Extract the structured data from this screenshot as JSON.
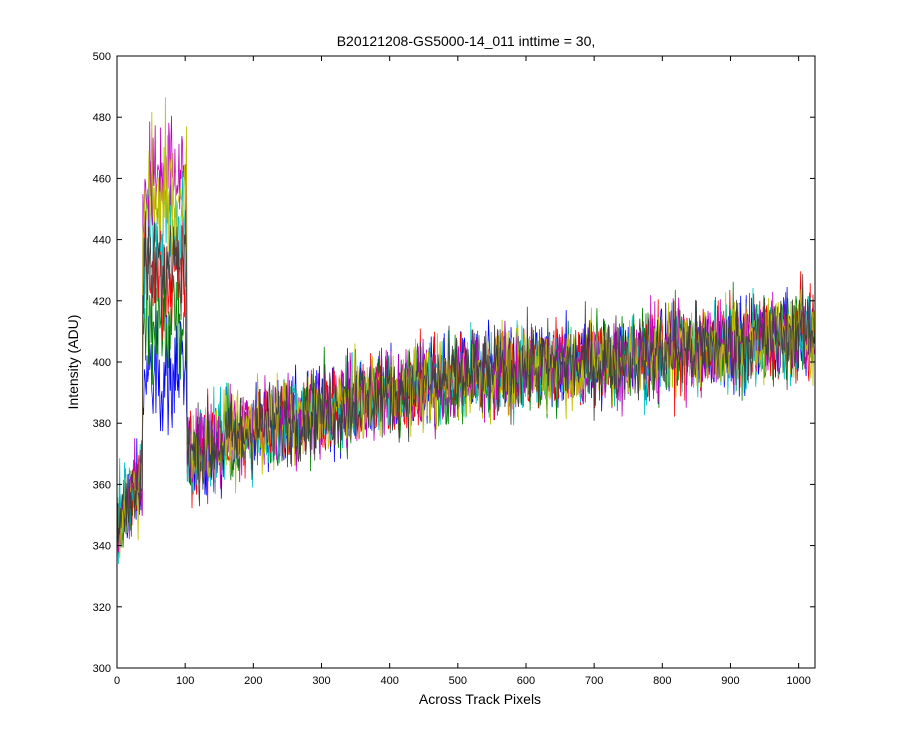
{
  "chart_data": {
    "type": "line",
    "title": "B20121208-GS5000-14_011 inttime = 30,",
    "xlabel": "Across Track Pixels",
    "ylabel": "Intensity (ADU)",
    "xlim": [
      0,
      1024
    ],
    "ylim": [
      300,
      500
    ],
    "x_ticks": [
      0,
      100,
      200,
      300,
      400,
      500,
      600,
      700,
      800,
      900,
      1000
    ],
    "y_ticks": [
      300,
      320,
      340,
      360,
      380,
      400,
      420,
      440,
      460,
      480,
      500
    ],
    "grid": false,
    "legend": "none",
    "series_colors": [
      "#0000ff",
      "#008000",
      "#ff0000",
      "#00bfbf",
      "#bf00bf",
      "#bfbf00",
      "#404040"
    ],
    "baseline_trend": [
      {
        "x": 0,
        "y": 345
      },
      {
        "x": 20,
        "y": 357
      },
      {
        "x": 60,
        "y": 365
      },
      {
        "x": 110,
        "y": 370
      },
      {
        "x": 200,
        "y": 378
      },
      {
        "x": 300,
        "y": 384
      },
      {
        "x": 400,
        "y": 390
      },
      {
        "x": 500,
        "y": 395
      },
      {
        "x": 600,
        "y": 398
      },
      {
        "x": 700,
        "y": 400
      },
      {
        "x": 800,
        "y": 403
      },
      {
        "x": 900,
        "y": 406
      },
      {
        "x": 1024,
        "y": 410
      }
    ],
    "noise_amplitude_adu": 12,
    "peak_region": {
      "x_start": 38,
      "x_end": 102,
      "peak_values": [
        400,
        420,
        440,
        460,
        475,
        470,
        445
      ]
    }
  }
}
